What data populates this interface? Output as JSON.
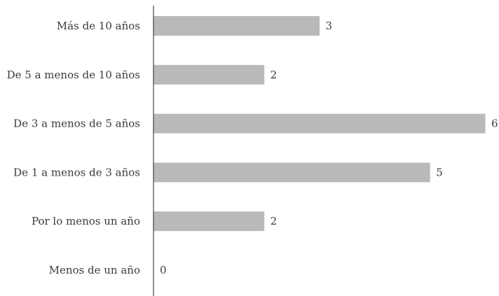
{
  "chart_data": {
    "type": "bar",
    "orientation": "horizontal",
    "categories": [
      "Más de 10 años",
      "De 5 a menos de 10 años",
      "De 3 a menos de 5 años",
      "De 1 a menos de 3 años",
      "Por lo menos un año",
      "Menos de un año"
    ],
    "values": [
      3,
      2,
      6,
      5,
      2,
      0
    ],
    "xlim": [
      0,
      6
    ],
    "grid": false,
    "legend": "none",
    "bar_color": "#b9b9bb",
    "axis_color": "#222222"
  }
}
